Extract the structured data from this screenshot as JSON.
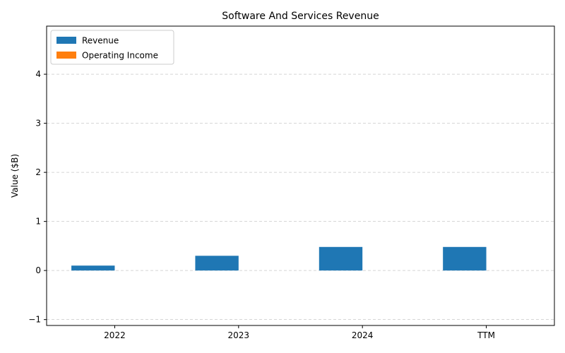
{
  "chart_data": {
    "type": "bar",
    "title": "Software And Services Revenue",
    "xlabel": "",
    "ylabel": "Value ($B)",
    "categories": [
      "2022",
      "2023",
      "2024",
      "TTM"
    ],
    "series": [
      {
        "name": "Revenue",
        "color": "#1f77b4",
        "values": [
          0.1,
          0.3,
          0.48,
          0.48
        ]
      },
      {
        "name": "Operating Income",
        "color": "#ff7f0e",
        "values": [
          0,
          0,
          0,
          0
        ]
      }
    ],
    "ylim": [
      -1.12,
      4.98
    ],
    "yticks": [
      -1,
      0,
      1,
      2,
      3,
      4
    ],
    "grid": true,
    "legend_position": "top-left"
  }
}
